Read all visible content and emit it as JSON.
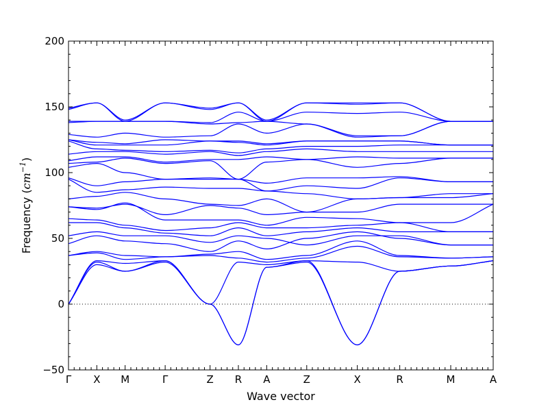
{
  "chart_data": {
    "type": "line",
    "title": "",
    "xlabel": "Wave vector",
    "ylabel_prefix": "Frequency (",
    "ylabel_unit_base": "cm",
    "ylabel_unit_exp": "−1",
    "ylabel_suffix": ")",
    "ylim": [
      -50,
      200
    ],
    "yticks": [
      -50,
      0,
      50,
      100,
      150,
      200
    ],
    "ytick_labels": [
      "−50",
      "0",
      "50",
      "100",
      "150",
      "200"
    ],
    "kpath": [
      "Γ",
      "X",
      "M",
      "Γ",
      "Z",
      "R",
      "A",
      "Z",
      "X",
      "R",
      "M",
      "A"
    ],
    "kpath_x": [
      0,
      1,
      2,
      3.4142,
      5.0,
      6.0,
      7.0,
      8.4142,
      10.2,
      11.7,
      13.5,
      15.0
    ],
    "zero_line": 0,
    "grid": false,
    "line_color": "#0000ff",
    "series": [
      {
        "y": [
          0,
          32,
          25,
          33,
          0,
          -31,
          28,
          32,
          -31,
          25,
          29,
          33
        ]
      },
      {
        "y": [
          0,
          30,
          25,
          32,
          0,
          -31,
          28,
          33,
          -31,
          25,
          29,
          33
        ]
      },
      {
        "y": [
          0,
          33,
          31,
          33,
          0,
          32,
          30,
          33,
          32,
          25,
          29,
          33
        ]
      },
      {
        "y": [
          37,
          39,
          34,
          36,
          37,
          35,
          32,
          35,
          44,
          36,
          35,
          36
        ]
      },
      {
        "y": [
          37,
          40,
          37,
          36,
          38,
          40,
          34,
          37,
          48,
          37,
          35,
          36
        ]
      },
      {
        "y": [
          46,
          52,
          48,
          46,
          40,
          48,
          42,
          50,
          55,
          50,
          45,
          45
        ]
      },
      {
        "y": [
          52,
          55,
          52,
          52,
          47,
          52,
          50,
          45,
          52,
          52,
          45,
          45
        ]
      },
      {
        "y": [
          62,
          62,
          58,
          54,
          52,
          58,
          52,
          55,
          58,
          55,
          55,
          55
        ]
      },
      {
        "y": [
          65,
          64,
          60,
          56,
          58,
          62,
          58,
          58,
          60,
          62,
          55,
          55
        ]
      },
      {
        "y": [
          74,
          72,
          77,
          64,
          64,
          64,
          60,
          66,
          65,
          62,
          62,
          76
        ]
      },
      {
        "y": [
          74,
          73,
          76,
          68,
          75,
          73,
          68,
          70,
          70,
          76,
          76,
          76
        ]
      },
      {
        "y": [
          80,
          82,
          85,
          80,
          76,
          75,
          80,
          70,
          80,
          81,
          81,
          84
        ]
      },
      {
        "y": [
          95,
          85,
          87,
          89,
          88,
          88,
          86,
          84,
          80,
          81,
          84,
          84
        ]
      },
      {
        "y": [
          96,
          90,
          93,
          95,
          95,
          95,
          86,
          90,
          88,
          96,
          93,
          93
        ]
      },
      {
        "y": [
          104,
          107,
          100,
          95,
          96,
          95,
          92,
          96,
          96,
          97,
          93,
          93
        ]
      },
      {
        "y": [
          107,
          108,
          111,
          107,
          109,
          95,
          108,
          110,
          104,
          107,
          111,
          111
        ]
      },
      {
        "y": [
          109,
          112,
          112,
          108,
          110,
          110,
          112,
          110,
          112,
          111,
          111,
          111
        ]
      },
      {
        "y": [
          114,
          116,
          116,
          114,
          116,
          113,
          116,
          118,
          116,
          116,
          116,
          116
        ]
      },
      {
        "y": [
          124,
          118,
          117,
          116,
          117,
          115,
          118,
          120,
          120,
          121,
          121,
          121
        ]
      },
      {
        "y": [
          125,
          121,
          121,
          121,
          124,
          123,
          121,
          124,
          124,
          124,
          121,
          121
        ]
      },
      {
        "y": [
          125,
          123,
          122,
          125,
          124,
          124,
          122,
          124,
          124,
          124,
          121,
          121
        ]
      },
      {
        "y": [
          129,
          127,
          130,
          127,
          128,
          137,
          130,
          137,
          127,
          128,
          139,
          139
        ]
      },
      {
        "y": [
          138,
          139,
          139,
          139,
          137,
          138,
          139,
          137,
          128,
          128,
          139,
          139
        ]
      },
      {
        "y": [
          139,
          139,
          139,
          139,
          138,
          146,
          139,
          146,
          145,
          146,
          139,
          139
        ]
      },
      {
        "y": [
          148,
          153,
          139,
          153,
          148,
          153,
          139,
          153,
          152,
          153,
          139,
          139
        ]
      },
      {
        "y": [
          149,
          153,
          140,
          153,
          149,
          153,
          140,
          153,
          153,
          153,
          139,
          139
        ]
      }
    ]
  }
}
